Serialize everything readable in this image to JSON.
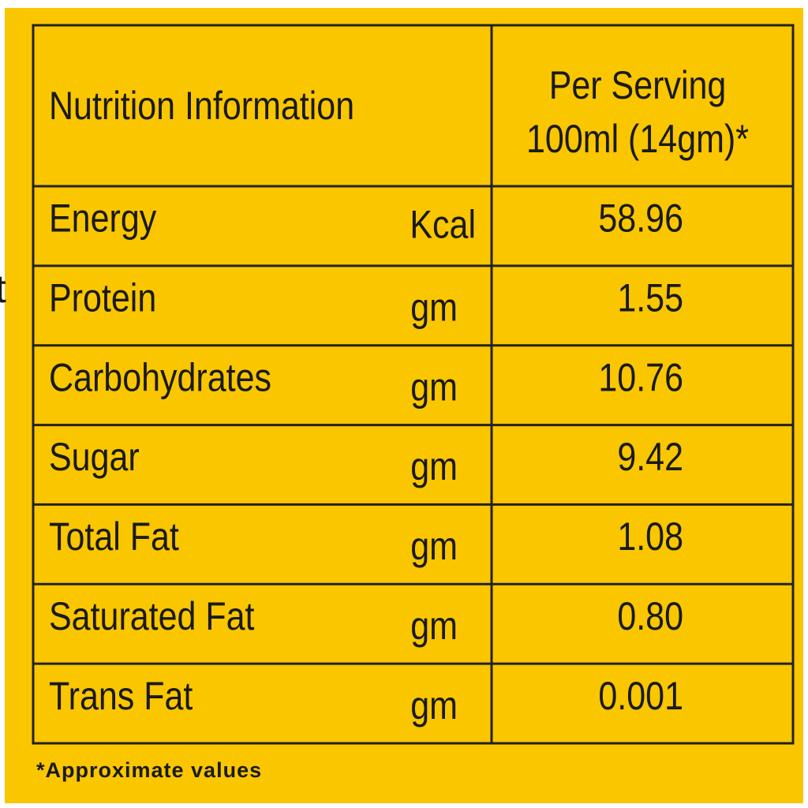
{
  "header": {
    "title": "Nutrition Information",
    "serving_line1": "Per Serving",
    "serving_line2": "100ml (14gm)*"
  },
  "table": {
    "rows": [
      [
        "Energy",
        "Kcal",
        "58.96"
      ],
      [
        "Protein",
        "gm",
        "1.55"
      ],
      [
        "Carbohydrates",
        "gm",
        "10.76"
      ],
      [
        "Sugar",
        "gm",
        "9.42"
      ],
      [
        "Total Fat",
        "gm",
        "1.08"
      ],
      [
        "Saturated Fat",
        "gm",
        "0.80"
      ],
      [
        "Trans Fat",
        "gm",
        "0.001"
      ]
    ]
  },
  "footnote": "*Approximate values",
  "edge_fragment": "t"
}
